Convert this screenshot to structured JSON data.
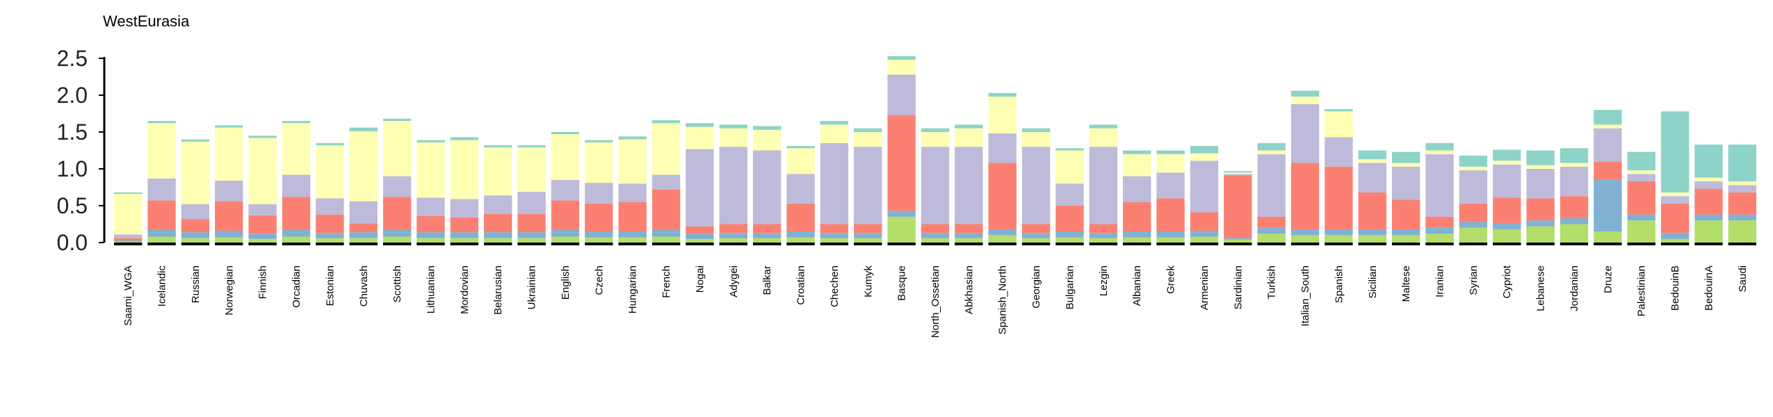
{
  "chart_data": {
    "type": "bar",
    "stacked": true,
    "title": "WestEurasia",
    "xlabel": "",
    "ylabel": "",
    "ylim": [
      0,
      2.65
    ],
    "yticks": [
      "0.0",
      "0.5",
      "1.0",
      "1.5",
      "2.0",
      "2.5"
    ],
    "grid": false,
    "legend": "none",
    "component_colors": [
      "#b3de69",
      "#80b1d3",
      "#fb8072",
      "#bebada",
      "#ffffb3",
      "#8dd3c7"
    ],
    "populations": [
      {
        "name": "Saami_WGA",
        "values": [
          0.01,
          0.02,
          0.03,
          0.05,
          0.55,
          0.02
        ]
      },
      {
        "name": "Icelandic",
        "values": [
          0.08,
          0.09,
          0.4,
          0.3,
          0.75,
          0.03
        ]
      },
      {
        "name": "Russian",
        "values": [
          0.06,
          0.08,
          0.18,
          0.2,
          0.85,
          0.03
        ]
      },
      {
        "name": "Norwegian",
        "values": [
          0.07,
          0.09,
          0.4,
          0.28,
          0.72,
          0.03
        ]
      },
      {
        "name": "Finnish",
        "values": [
          0.05,
          0.07,
          0.25,
          0.15,
          0.9,
          0.03
        ]
      },
      {
        "name": "Orcadian",
        "values": [
          0.08,
          0.09,
          0.45,
          0.3,
          0.7,
          0.03
        ]
      },
      {
        "name": "Estonian",
        "values": [
          0.06,
          0.07,
          0.25,
          0.22,
          0.72,
          0.03
        ]
      },
      {
        "name": "Chuvash",
        "values": [
          0.06,
          0.08,
          0.12,
          0.3,
          0.95,
          0.05
        ]
      },
      {
        "name": "Scottish",
        "values": [
          0.08,
          0.09,
          0.45,
          0.28,
          0.75,
          0.03
        ]
      },
      {
        "name": "Lithuanian",
        "values": [
          0.06,
          0.08,
          0.22,
          0.25,
          0.75,
          0.03
        ]
      },
      {
        "name": "Mordovian",
        "values": [
          0.06,
          0.08,
          0.2,
          0.25,
          0.8,
          0.04
        ]
      },
      {
        "name": "Belarusian",
        "values": [
          0.06,
          0.08,
          0.25,
          0.25,
          0.65,
          0.03
        ]
      },
      {
        "name": "Ukrainian",
        "values": [
          0.06,
          0.08,
          0.25,
          0.3,
          0.6,
          0.03
        ]
      },
      {
        "name": "English",
        "values": [
          0.08,
          0.09,
          0.4,
          0.28,
          0.62,
          0.03
        ]
      },
      {
        "name": "Czech",
        "values": [
          0.07,
          0.08,
          0.38,
          0.28,
          0.55,
          0.03
        ]
      },
      {
        "name": "Hungarian",
        "values": [
          0.07,
          0.08,
          0.4,
          0.25,
          0.6,
          0.04
        ]
      },
      {
        "name": "French",
        "values": [
          0.08,
          0.09,
          0.55,
          0.2,
          0.7,
          0.04
        ]
      },
      {
        "name": "Nogai",
        "values": [
          0.05,
          0.07,
          0.1,
          1.05,
          0.3,
          0.05
        ]
      },
      {
        "name": "Adygei",
        "values": [
          0.06,
          0.07,
          0.12,
          1.05,
          0.25,
          0.05
        ]
      },
      {
        "name": "Balkar",
        "values": [
          0.06,
          0.07,
          0.12,
          1.0,
          0.28,
          0.05
        ]
      },
      {
        "name": "Croatian",
        "values": [
          0.07,
          0.08,
          0.38,
          0.4,
          0.35,
          0.03
        ]
      },
      {
        "name": "Chechen",
        "values": [
          0.06,
          0.07,
          0.12,
          1.1,
          0.25,
          0.05
        ]
      },
      {
        "name": "Kumyk",
        "values": [
          0.06,
          0.07,
          0.12,
          1.05,
          0.2,
          0.05
        ]
      },
      {
        "name": "Basque",
        "values": [
          0.35,
          0.08,
          1.3,
          0.55,
          0.2,
          0.05
        ]
      },
      {
        "name": "North_Ossetian",
        "values": [
          0.06,
          0.07,
          0.12,
          1.05,
          0.2,
          0.05
        ]
      },
      {
        "name": "Abkhasian",
        "values": [
          0.06,
          0.07,
          0.12,
          1.05,
          0.25,
          0.05
        ]
      },
      {
        "name": "Spanish_North",
        "values": [
          0.1,
          0.08,
          0.9,
          0.4,
          0.5,
          0.05
        ]
      },
      {
        "name": "Georgian",
        "values": [
          0.06,
          0.07,
          0.12,
          1.05,
          0.2,
          0.05
        ]
      },
      {
        "name": "Bulgarian",
        "values": [
          0.07,
          0.08,
          0.35,
          0.3,
          0.45,
          0.03
        ]
      },
      {
        "name": "Lezgin",
        "values": [
          0.06,
          0.07,
          0.12,
          1.05,
          0.25,
          0.05
        ]
      },
      {
        "name": "Albanian",
        "values": [
          0.07,
          0.08,
          0.4,
          0.35,
          0.3,
          0.05
        ]
      },
      {
        "name": "Greek",
        "values": [
          0.07,
          0.08,
          0.45,
          0.35,
          0.25,
          0.05
        ]
      },
      {
        "name": "Armenian",
        "values": [
          0.08,
          0.08,
          0.25,
          0.7,
          0.1,
          0.1
        ]
      },
      {
        "name": "Sardinian",
        "values": [
          0.04,
          0.02,
          0.85,
          0.02,
          0.02,
          0.02
        ]
      },
      {
        "name": "Turkish",
        "values": [
          0.12,
          0.08,
          0.15,
          0.85,
          0.05,
          0.1
        ]
      },
      {
        "name": "Italian_South",
        "values": [
          0.1,
          0.08,
          0.9,
          0.8,
          0.1,
          0.08
        ]
      },
      {
        "name": "Spanish",
        "values": [
          0.1,
          0.08,
          0.85,
          0.4,
          0.35,
          0.03
        ]
      },
      {
        "name": "Sicilian",
        "values": [
          0.1,
          0.08,
          0.5,
          0.4,
          0.05,
          0.12
        ]
      },
      {
        "name": "Maltese",
        "values": [
          0.1,
          0.08,
          0.4,
          0.45,
          0.05,
          0.15
        ]
      },
      {
        "name": "Iranian",
        "values": [
          0.12,
          0.08,
          0.15,
          0.85,
          0.05,
          0.1
        ]
      },
      {
        "name": "Syrian",
        "values": [
          0.2,
          0.08,
          0.25,
          0.45,
          0.05,
          0.15
        ]
      },
      {
        "name": "Cypriot",
        "values": [
          0.18,
          0.08,
          0.35,
          0.45,
          0.05,
          0.15
        ]
      },
      {
        "name": "Lebanese",
        "values": [
          0.22,
          0.08,
          0.3,
          0.4,
          0.05,
          0.2
        ]
      },
      {
        "name": "Jordanian",
        "values": [
          0.25,
          0.08,
          0.3,
          0.4,
          0.05,
          0.2
        ]
      },
      {
        "name": "Druze",
        "values": [
          0.15,
          0.7,
          0.25,
          0.45,
          0.05,
          0.2
        ]
      },
      {
        "name": "Palestinian",
        "values": [
          0.3,
          0.08,
          0.45,
          0.1,
          0.05,
          0.25
        ]
      },
      {
        "name": "BedouinB",
        "values": [
          0.05,
          0.08,
          0.4,
          0.1,
          0.05,
          1.1
        ]
      },
      {
        "name": "BedouinA",
        "values": [
          0.3,
          0.08,
          0.35,
          0.1,
          0.05,
          0.45
        ]
      },
      {
        "name": "Saudi",
        "values": [
          0.3,
          0.08,
          0.3,
          0.1,
          0.05,
          0.5
        ]
      }
    ]
  }
}
